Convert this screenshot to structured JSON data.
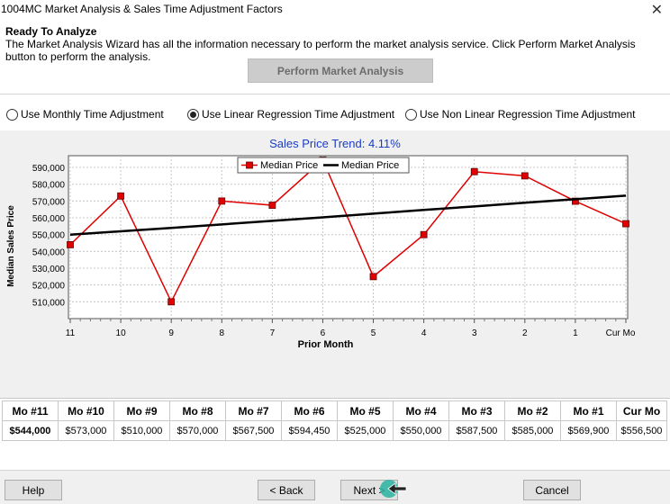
{
  "window": {
    "title": "1004MC Market Analysis & Sales Time Adjustment Factors",
    "close_glyph": "✕"
  },
  "info": {
    "heading": "Ready To Analyze",
    "description": "The Market Analysis Wizard has all the information necessary to perform the market analysis service.  Click Perform Market Analysis button to perform the analysis.",
    "perform_button": "Perform Market Analysis"
  },
  "options": [
    {
      "label": "Use Monthly Time Adjustment",
      "selected": false
    },
    {
      "label": "Use Linear Regression Time Adjustment",
      "selected": true
    },
    {
      "label": "Use Non Linear Regression Time Adjustment",
      "selected": false
    }
  ],
  "chart_data": {
    "type": "line",
    "title": "Sales Price Trend: 4.11%",
    "xlabel": "Prior Month",
    "ylabel": "Median Sales Price",
    "categories": [
      "11",
      "10",
      "9",
      "8",
      "7",
      "6",
      "5",
      "4",
      "3",
      "2",
      "1",
      "Cur Mo"
    ],
    "yticks": [
      "510,000",
      "520,000",
      "530,000",
      "540,000",
      "550,000",
      "560,000",
      "570,000",
      "580,000",
      "590,000"
    ],
    "ylim": [
      500000,
      597000
    ],
    "grid": true,
    "legend_position": "top",
    "series": [
      {
        "name": "Median Price",
        "color": "#e00000",
        "marker": "square",
        "values": [
          544000,
          573000,
          510000,
          570000,
          567500,
          594450,
          525000,
          550000,
          587500,
          585000,
          569900,
          556500
        ]
      },
      {
        "name": "Median Price",
        "color": "#000000",
        "marker": "none",
        "values": [
          550000,
          552000,
          554000,
          556100,
          558200,
          560300,
          562500,
          564700,
          566800,
          569000,
          571100,
          573200
        ]
      }
    ]
  },
  "table": {
    "headers": [
      "Mo #11",
      "Mo #10",
      "Mo #9",
      "Mo #8",
      "Mo #7",
      "Mo #6",
      "Mo #5",
      "Mo #4",
      "Mo #3",
      "Mo #2",
      "Mo #1",
      "Cur Mo"
    ],
    "values": [
      "$544,000",
      "$573,000",
      "$510,000",
      "$570,000",
      "$567,500",
      "$594,450",
      "$525,000",
      "$550,000",
      "$587,500",
      "$585,000",
      "$569,900",
      "$556,500"
    ]
  },
  "footer": {
    "help": "Help",
    "back": "< Back",
    "next": "Next >",
    "cancel": "Cancel"
  }
}
